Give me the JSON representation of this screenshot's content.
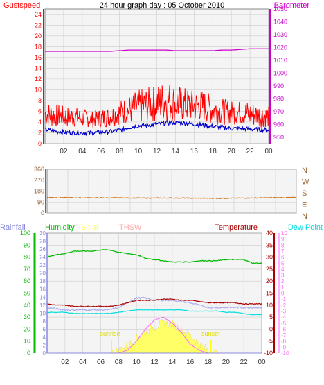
{
  "title": "24 hour graph day : 05 October 2010",
  "colors": {
    "gust": "#ff0000",
    "wind": "#0000cc",
    "baro": "#cc00cc",
    "dir": "#cc6600",
    "rain": "#8888dd",
    "hum": "#00bb00",
    "solar": "#ffff66",
    "thsw": "#ffaaaa",
    "temp": "#aa0000",
    "dew": "#00dddd",
    "uv": "#ff66ff",
    "sun": "#ffff00",
    "grid": "#cccccc",
    "dirAxis": "#996633"
  },
  "chart_data": [
    {
      "type": "line",
      "title": "24 hour graph day : 05 October 2010",
      "ylabel_left": "Gustspeed",
      "ylabel_right": "Barometer",
      "ylim_left": [
        0,
        25
      ],
      "yticks_left": [
        0,
        2,
        4,
        6,
        8,
        10,
        12,
        14,
        16,
        18,
        20,
        22,
        24
      ],
      "ylim_right": [
        945,
        1050
      ],
      "yticks_right": [
        950,
        960,
        970,
        980,
        990,
        1000,
        1010,
        1020,
        1030,
        1040,
        1050
      ],
      "xticks": [
        "02",
        "04",
        "06",
        "08",
        "10",
        "12",
        "14",
        "16",
        "18",
        "20",
        "22",
        "00"
      ],
      "x": [
        0,
        1,
        2,
        3,
        4,
        5,
        6,
        7,
        8,
        9,
        10,
        11,
        12,
        13,
        14,
        15,
        16,
        17,
        18,
        19,
        20,
        21,
        22,
        23,
        24
      ],
      "series": [
        {
          "name": "Gustspeed",
          "axis": "left",
          "low": [
            3,
            3,
            3,
            3,
            3,
            3,
            3,
            3,
            3.5,
            3.5,
            3.5,
            4,
            4,
            4,
            4,
            4,
            4,
            4,
            3.5,
            3.5,
            3.5,
            3.5,
            3,
            3,
            3
          ],
          "high": [
            8,
            7.5,
            7,
            7,
            6.5,
            6,
            6.5,
            7,
            8,
            9,
            10,
            10.5,
            11,
            12,
            11,
            10.5,
            10,
            10,
            9,
            8.5,
            8,
            8,
            8,
            7.5,
            7
          ]
        },
        {
          "axis": "left",
          "values": [
            2.6,
            2.3,
            2.1,
            2.0,
            2.0,
            2.0,
            2.1,
            2.2,
            2.5,
            3.0,
            3.3,
            3.4,
            3.6,
            3.8,
            3.9,
            3.8,
            3.6,
            3.4,
            3.2,
            3.0,
            2.8,
            2.8,
            2.7,
            2.6,
            2.5
          ]
        },
        {
          "name": "Barometer",
          "axis": "right",
          "values": [
            1017,
            1017,
            1017,
            1017,
            1017,
            1017,
            1017,
            1017,
            1017.5,
            1018,
            1018,
            1018,
            1018,
            1018,
            1017.5,
            1017.5,
            1017.5,
            1017.5,
            1017.5,
            1018,
            1018,
            1018.5,
            1019,
            1019,
            1019
          ]
        }
      ]
    },
    {
      "type": "line",
      "ylim": [
        0,
        360
      ],
      "yticks": [
        0,
        90,
        180,
        270,
        360
      ],
      "direction_labels": [
        "N",
        "W",
        "S",
        "E",
        "N"
      ],
      "xticks": [
        "02",
        "04",
        "06",
        "08",
        "10",
        "12",
        "14",
        "16",
        "18",
        "20",
        "22",
        "00"
      ],
      "x": [
        0,
        2,
        4,
        6,
        8,
        10,
        12,
        14,
        16,
        18,
        20,
        22,
        24
      ],
      "series": [
        {
          "values": [
            128,
            126,
            125,
            125,
            124,
            123,
            124,
            122,
            121,
            122,
            124,
            126,
            128
          ]
        }
      ]
    },
    {
      "type": "line",
      "legend": [
        "Rainfall",
        "Humidity",
        "Solar",
        "THSW",
        "Temperature",
        "Dew Point"
      ],
      "ylim_hum": [
        0,
        100
      ],
      "yticks_hum": [
        0,
        10,
        20,
        30,
        40,
        50,
        60,
        70,
        80,
        90,
        100
      ],
      "ylim_rain": [
        0,
        30
      ],
      "yticks_rain": [
        0,
        2,
        4,
        6,
        8,
        10,
        12,
        14,
        16,
        18,
        20,
        22,
        24,
        26,
        28,
        30
      ],
      "ylim_temp": [
        -10,
        40
      ],
      "yticks_temp": [
        -10,
        -5,
        0,
        5,
        10,
        15,
        20,
        25,
        30,
        35,
        40
      ],
      "ylim_uv": [
        -10,
        10
      ],
      "yticks_uv": [
        -10,
        -9,
        -8,
        -7,
        -6,
        -5,
        -4,
        -3,
        -2,
        -1,
        0,
        1,
        2,
        3,
        4,
        5,
        6,
        7,
        8,
        9,
        10
      ],
      "annotations": [
        "sunrise",
        "sunset"
      ],
      "sunrise_hour": 7.2,
      "sunset_hour": 18.3,
      "xticks": [
        "02",
        "04",
        "06",
        "08",
        "10",
        "12",
        "14",
        "16",
        "18",
        "20",
        "22",
        "00"
      ],
      "x": [
        0,
        1,
        2,
        3,
        4,
        5,
        6,
        7,
        8,
        9,
        10,
        11,
        12,
        13,
        14,
        15,
        16,
        17,
        18,
        19,
        20,
        21,
        22,
        23,
        24
      ],
      "series": [
        {
          "name": "Humidity",
          "axis": "hum",
          "values": [
            80,
            82,
            83,
            85,
            85,
            85,
            86,
            86,
            84,
            83,
            82,
            79,
            78,
            77,
            76,
            76,
            76,
            77,
            77,
            77,
            78,
            78,
            78,
            75,
            75
          ]
        },
        {
          "name": "Temperature",
          "axis": "temp",
          "values": [
            10.5,
            10,
            10,
            9.5,
            9.5,
            9.5,
            9.5,
            9.5,
            10,
            11,
            12,
            12,
            12,
            12.5,
            12.5,
            12,
            12,
            11.5,
            11,
            11,
            11,
            11,
            10.5,
            10.5,
            10.5
          ]
        },
        {
          "name": "Dew Point",
          "axis": "temp",
          "values": [
            7,
            7,
            7,
            6.5,
            6.5,
            6.5,
            6.5,
            6.5,
            7,
            7.5,
            8,
            8,
            8,
            8,
            8,
            8,
            7.5,
            7.5,
            7.5,
            7.5,
            7,
            7,
            6.5,
            6,
            6
          ]
        },
        {
          "name": "THSW",
          "axis": "temp",
          "values": [
            9,
            8.5,
            8,
            8,
            8,
            8,
            8,
            8,
            9,
            11,
            13,
            13,
            12,
            12,
            12,
            11.5,
            11,
            10,
            9,
            9,
            9,
            9,
            9,
            9,
            9
          ]
        },
        {
          "name": "Rainfall",
          "axis": "rain",
          "values": [
            0,
            0,
            0,
            0,
            0,
            0,
            0,
            0,
            0,
            0,
            0,
            0,
            0,
            0,
            0,
            0,
            0,
            0,
            0,
            0,
            0,
            0,
            0,
            0,
            0
          ]
        },
        {
          "name": "Solar",
          "axis": "hum",
          "values": [
            0,
            0,
            0,
            0,
            0,
            0,
            0,
            0,
            2,
            6,
            12,
            18,
            22,
            25,
            24,
            20,
            15,
            8,
            2,
            0,
            0,
            0,
            0,
            0,
            0
          ]
        },
        {
          "axis": "uv",
          "values": [
            -10,
            -10,
            -10,
            -10,
            -10,
            -10,
            -10,
            -10,
            -10,
            -9.5,
            -8,
            -6,
            -4.5,
            -4,
            -5,
            -6.5,
            -8.5,
            -9.5,
            -10,
            -10,
            -10,
            -10,
            -10,
            -10,
            -10
          ]
        }
      ]
    }
  ]
}
